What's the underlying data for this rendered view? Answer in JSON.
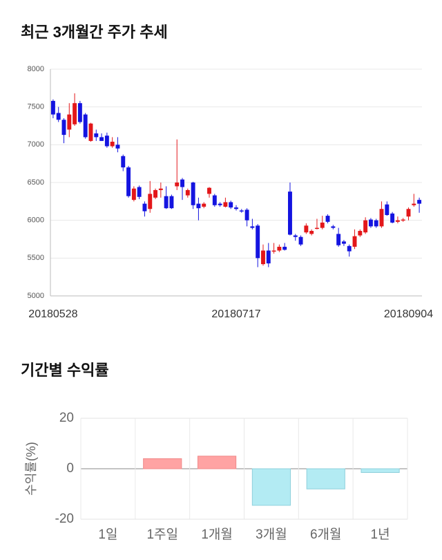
{
  "chart_data": [
    {
      "type": "candlestick",
      "title": "최근 3개월간 주가 추세",
      "categories": [
        "20180528",
        null,
        null,
        null,
        null,
        null,
        null,
        null,
        null,
        null,
        null,
        null,
        null,
        null,
        null,
        null,
        null,
        null,
        null,
        null,
        null,
        null,
        null,
        null,
        null,
        null,
        null,
        null,
        null,
        null,
        null,
        null,
        null,
        null,
        "20180717",
        null,
        null,
        null,
        null,
        null,
        null,
        null,
        null,
        null,
        null,
        null,
        null,
        null,
        null,
        null,
        null,
        null,
        null,
        null,
        null,
        null,
        null,
        null,
        null,
        null,
        null,
        null,
        null,
        null,
        null,
        null,
        "20180904",
        null,
        null
      ],
      "open": [
        7580,
        7420,
        7330,
        7200,
        7270,
        7550,
        7400,
        7050,
        7150,
        7100,
        7120,
        6980,
        7000,
        6850,
        6700,
        6270,
        6440,
        6220,
        6150,
        6300,
        6400,
        6320,
        6320,
        6450,
        6540,
        6330,
        6500,
        6220,
        6180,
        6350,
        6330,
        6220,
        6180,
        6240,
        6170,
        6130,
        6140,
        5920,
        5930,
        5420,
        5600,
        5590,
        5600,
        5650,
        6380,
        5800,
        5780,
        5840,
        5820,
        5890,
        5900,
        6060,
        5920,
        5820,
        5720,
        5660,
        5650,
        5800,
        5840,
        6010,
        6000,
        5920,
        6210,
        6090,
        5980,
        6000,
        6050,
        6200,
        6270
      ],
      "high": [
        7600,
        7500,
        7350,
        7550,
        7680,
        7580,
        7420,
        7290,
        7200,
        7150,
        7160,
        7100,
        7100,
        6870,
        6720,
        6450,
        6460,
        6250,
        6520,
        6420,
        6500,
        6450,
        6340,
        7070,
        6560,
        6420,
        6510,
        6300,
        6240,
        6440,
        6350,
        6240,
        6300,
        6260,
        6200,
        6150,
        6160,
        6020,
        5950,
        5680,
        5700,
        5700,
        5680,
        5700,
        6500,
        5820,
        5800,
        5960,
        5880,
        6020,
        6060,
        6080,
        5940,
        5900,
        5740,
        5680,
        5880,
        5880,
        6040,
        6030,
        6020,
        6250,
        6250,
        6110,
        6050,
        6030,
        6170,
        6350,
        6300
      ],
      "low": [
        7350,
        7300,
        7020,
        7100,
        7250,
        7280,
        7080,
        7040,
        7050,
        7050,
        6960,
        6960,
        6900,
        6650,
        6300,
        6250,
        6280,
        6050,
        6100,
        6280,
        6300,
        6150,
        6150,
        6400,
        6270,
        6300,
        6150,
        6000,
        6160,
        6300,
        6180,
        6180,
        6170,
        6150,
        6130,
        6100,
        5920,
        5880,
        5380,
        5400,
        5380,
        5560,
        5580,
        5600,
        5800,
        5730,
        5660,
        5820,
        5800,
        5880,
        5880,
        5960,
        5880,
        5650,
        5660,
        5520,
        5620,
        5780,
        5820,
        5900,
        5900,
        5900,
        6060,
        5960,
        5960,
        5980,
        6000,
        6180,
        6100
      ],
      "close": [
        7400,
        7330,
        7130,
        7400,
        7550,
        7300,
        7100,
        7280,
        7100,
        7050,
        6980,
        7040,
        6950,
        6700,
        6320,
        6420,
        6310,
        6120,
        6350,
        6400,
        6420,
        6160,
        6160,
        6500,
        6440,
        6400,
        6200,
        6160,
        6220,
        6430,
        6200,
        6200,
        6240,
        6170,
        6150,
        6120,
        6000,
        5900,
        5500,
        5600,
        5430,
        5600,
        5650,
        5610,
        5810,
        5780,
        5680,
        5930,
        5860,
        5900,
        5970,
        5980,
        5900,
        5670,
        5690,
        5590,
        5790,
        5860,
        6000,
        5920,
        5920,
        6150,
        6070,
        5970,
        6000,
        6010,
        6150,
        6220,
        6220
      ],
      "up_color": "#e3171a",
      "down_color": "#1414e0",
      "ylim": [
        5000,
        8000
      ],
      "yticks": [
        5000,
        5500,
        6000,
        6500,
        7000,
        7500,
        8000
      ],
      "grid": true
    },
    {
      "type": "bar",
      "title": "기간별 수익률",
      "y_label": "수익률(%)",
      "categories": [
        "1일",
        "1주일",
        "1개월",
        "3개월",
        "6개월",
        "1년"
      ],
      "values": [
        0,
        4,
        5,
        -14.5,
        -8,
        -1.5
      ],
      "positive_color": "#ffa3a3",
      "negative_color": "#b3ebf3",
      "ylim": [
        -20,
        20
      ],
      "yticks": [
        -20,
        0,
        20
      ],
      "grid": true
    }
  ]
}
